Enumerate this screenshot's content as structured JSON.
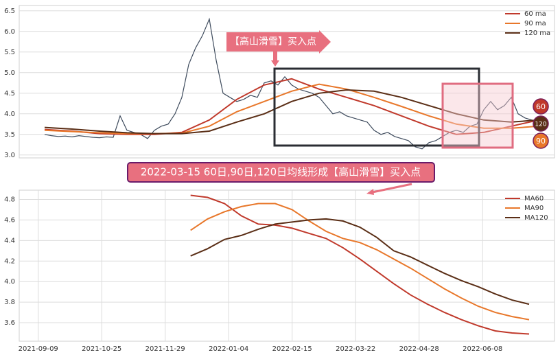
{
  "chart_data": [
    {
      "type": "line",
      "annotation": "【高山滑雪】买入点",
      "xlim": [
        -3.7,
        74.3
      ],
      "ylim": [
        2.93,
        6.63
      ],
      "yticks": [
        {
          "value": 3,
          "label": "3.0"
        },
        {
          "value": 3.5,
          "label": "3.5"
        },
        {
          "value": 4,
          "label": "4.0"
        },
        {
          "value": 4.5,
          "label": "4.5"
        },
        {
          "value": 5,
          "label": "5.0"
        },
        {
          "value": 5.5,
          "label": "5.5"
        },
        {
          "value": 6,
          "label": "6.0"
        },
        {
          "value": 6.5,
          "label": "6.5"
        }
      ],
      "grid": true,
      "legend": "upper right",
      "series": [
        {
          "color": "#3d4a5c",
          "x": [
            0,
            1,
            2,
            3,
            4,
            5,
            6,
            7,
            8,
            9,
            10,
            11,
            12,
            13,
            14,
            15,
            16,
            17,
            18,
            19,
            20,
            21,
            22,
            23,
            24,
            25,
            26,
            27,
            28,
            29,
            30,
            31,
            32,
            33,
            34,
            35,
            36,
            37,
            38,
            39,
            40,
            41,
            42,
            43,
            44,
            45,
            46,
            47,
            48,
            49,
            50,
            51,
            52,
            53,
            54,
            55,
            56,
            57,
            58,
            59,
            60,
            61,
            62,
            63,
            64,
            65,
            66,
            67,
            68,
            69,
            70,
            71,
            72
          ],
          "values": [
            3.5,
            3.47,
            3.45,
            3.46,
            3.44,
            3.47,
            3.45,
            3.43,
            3.42,
            3.44,
            3.43,
            3.95,
            3.6,
            3.55,
            3.5,
            3.4,
            3.6,
            3.7,
            3.75,
            4.0,
            4.4,
            5.2,
            5.6,
            5.9,
            6.3,
            5.3,
            4.5,
            4.4,
            4.3,
            4.35,
            4.45,
            4.4,
            4.75,
            4.8,
            4.7,
            4.9,
            4.7,
            4.6,
            4.55,
            4.5,
            4.4,
            4.2,
            4.0,
            4.05,
            3.95,
            3.9,
            3.85,
            3.8,
            3.6,
            3.5,
            3.55,
            3.45,
            3.4,
            3.35,
            3.2,
            3.15,
            3.3,
            3.35,
            3.45,
            3.55,
            3.6,
            3.55,
            3.7,
            3.75,
            4.1,
            4.3,
            4.1,
            4.2,
            4.4,
            4.0,
            3.9,
            3.85,
            3.8
          ]
        },
        {
          "name": "60 ma",
          "color": "#c0392b",
          "x": [
            0,
            4,
            8,
            12,
            16,
            20,
            24,
            28,
            32,
            36,
            40,
            44,
            48,
            52,
            56,
            60,
            64,
            68,
            72
          ],
          "values": [
            3.62,
            3.58,
            3.52,
            3.5,
            3.5,
            3.55,
            3.85,
            4.35,
            4.7,
            4.85,
            4.6,
            4.4,
            4.2,
            3.95,
            3.7,
            3.5,
            3.55,
            3.7,
            3.85
          ]
        },
        {
          "name": "90 ma",
          "color": "#e8772a",
          "x": [
            0,
            4,
            8,
            12,
            16,
            20,
            24,
            28,
            32,
            36,
            40,
            44,
            48,
            52,
            56,
            60,
            64,
            68,
            72
          ],
          "values": [
            3.6,
            3.57,
            3.54,
            3.52,
            3.52,
            3.53,
            3.7,
            4.05,
            4.3,
            4.55,
            4.72,
            4.6,
            4.4,
            4.18,
            3.95,
            3.75,
            3.65,
            3.65,
            3.7
          ]
        },
        {
          "name": "120 ma",
          "color": "#5a2e16",
          "x": [
            0,
            4,
            8,
            12,
            16,
            20,
            24,
            28,
            32,
            36,
            40,
            44,
            48,
            52,
            56,
            60,
            64,
            68,
            72
          ],
          "values": [
            3.67,
            3.63,
            3.58,
            3.54,
            3.52,
            3.52,
            3.58,
            3.8,
            4.0,
            4.3,
            4.5,
            4.58,
            4.55,
            4.4,
            4.2,
            4.0,
            3.85,
            3.8,
            3.85
          ]
        }
      ],
      "badges": [
        {
          "label": "60",
          "color": "#c0392b"
        },
        {
          "label": "120",
          "color": "#5a2e16"
        },
        {
          "label": "90",
          "color": "#e8772a"
        }
      ]
    },
    {
      "type": "line",
      "annotation": "2022-03-15 60日,90日,120日均线形成【高山滑雪】买入点",
      "xlim": [
        -9,
        244
      ],
      "ylim": [
        3.42,
        4.89
      ],
      "xticks": [
        {
          "value": 0,
          "label": "2021-09-09"
        },
        {
          "value": 30,
          "label": "2021-10-25"
        },
        {
          "value": 60,
          "label": "2021-11-29"
        },
        {
          "value": 90,
          "label": "2022-01-04"
        },
        {
          "value": 120,
          "label": "2022-02-15"
        },
        {
          "value": 150,
          "label": "2022-03-22"
        },
        {
          "value": 180,
          "label": "2022-04-28"
        },
        {
          "value": 210,
          "label": "2022-06-08"
        }
      ],
      "yticks": [
        {
          "value": 3.6,
          "label": "3.6"
        },
        {
          "value": 3.8,
          "label": "3.8"
        },
        {
          "value": 4,
          "label": "4.0"
        },
        {
          "value": 4.2,
          "label": "4.2"
        },
        {
          "value": 4.4,
          "label": "4.4"
        },
        {
          "value": 4.6,
          "label": "4.6"
        },
        {
          "value": 4.8,
          "label": "4.8"
        }
      ],
      "grid": true,
      "legend": "upper right",
      "series": [
        {
          "name": "MA60",
          "color": "#c0392b",
          "x": [
            72,
            80,
            88,
            96,
            104,
            112,
            120,
            128,
            136,
            144,
            152,
            160,
            168,
            176,
            184,
            192,
            200,
            208,
            216,
            224,
            232
          ],
          "values": [
            4.84,
            4.82,
            4.76,
            4.64,
            4.56,
            4.55,
            4.52,
            4.47,
            4.42,
            4.33,
            4.22,
            4.1,
            3.98,
            3.87,
            3.78,
            3.7,
            3.63,
            3.57,
            3.52,
            3.5,
            3.49
          ]
        },
        {
          "name": "MA90",
          "color": "#e8772a",
          "x": [
            72,
            80,
            88,
            96,
            104,
            112,
            120,
            128,
            136,
            144,
            152,
            160,
            168,
            176,
            184,
            192,
            200,
            208,
            216,
            224,
            232
          ],
          "values": [
            4.5,
            4.61,
            4.68,
            4.73,
            4.76,
            4.76,
            4.7,
            4.59,
            4.49,
            4.42,
            4.38,
            4.31,
            4.22,
            4.13,
            4.03,
            3.93,
            3.84,
            3.76,
            3.7,
            3.66,
            3.63
          ]
        },
        {
          "name": "MA120",
          "color": "#5a2e16",
          "x": [
            72,
            80,
            88,
            96,
            104,
            112,
            120,
            128,
            136,
            144,
            152,
            160,
            168,
            176,
            184,
            192,
            200,
            208,
            216,
            224,
            232
          ],
          "values": [
            4.25,
            4.32,
            4.41,
            4.45,
            4.51,
            4.56,
            4.58,
            4.6,
            4.61,
            4.59,
            4.53,
            4.43,
            4.3,
            4.24,
            4.16,
            4.08,
            4.01,
            3.95,
            3.88,
            3.82,
            3.78
          ]
        }
      ]
    }
  ]
}
